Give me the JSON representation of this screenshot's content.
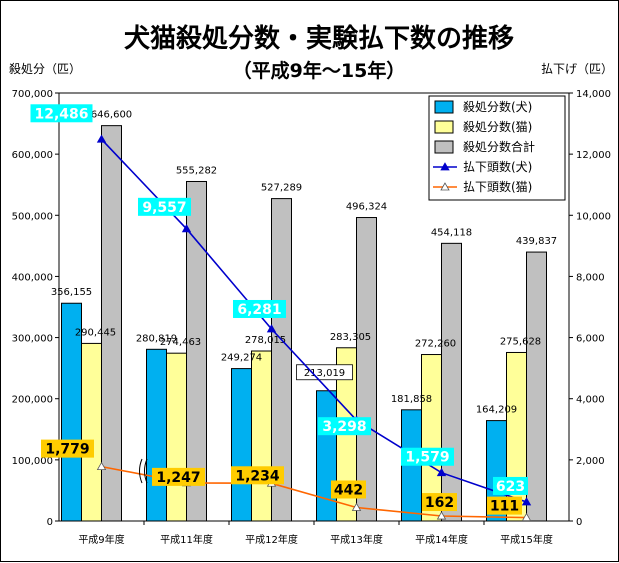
{
  "chart_data": {
    "type": "bar",
    "title": "犬猫殺処分数・実験払下数の推移",
    "subtitle": "（平成9年～15年）",
    "ylabel_left": "殺処分（匹）",
    "ylabel_right": "払下げ（匹）",
    "categories": [
      "平成9年度",
      "平成11年度",
      "平成12年度",
      "平成13年度",
      "平成14年度",
      "平成15年度"
    ],
    "ylim_left": [
      0,
      700000
    ],
    "ylim_right": [
      0,
      14000
    ],
    "left_ticks": [
      "0",
      "100,000",
      "200,000",
      "300,000",
      "400,000",
      "500,000",
      "600,000",
      "700,000"
    ],
    "right_ticks": [
      "0",
      "2,000",
      "4,000",
      "6,000",
      "8,000",
      "10,000",
      "12,000",
      "14,000"
    ],
    "series": [
      {
        "name": "殺処分数(犬)",
        "kind": "bar",
        "axis": "left",
        "color": "#00B0F0",
        "values": [
          356155,
          280819,
          249274,
          213019,
          181858,
          164209
        ],
        "labels": [
          "356,155",
          "280,819",
          "249,274",
          "213,019",
          "181,858",
          "164,209"
        ]
      },
      {
        "name": "殺処分数(猫)",
        "kind": "bar",
        "axis": "left",
        "color": "#FFFF99",
        "values": [
          290445,
          274463,
          278015,
          283305,
          272260,
          275628
        ],
        "labels": [
          "290,445",
          "274,463",
          "278,015",
          "283,305",
          "272,260",
          "275,628"
        ]
      },
      {
        "name": "殺処分数合計",
        "kind": "bar",
        "axis": "left",
        "color": "#C0C0C0",
        "values": [
          646600,
          555282,
          527289,
          496324,
          454118,
          439837
        ],
        "labels": [
          "646,600",
          "555,282",
          "527,289",
          "496,324",
          "454,118",
          "439,837"
        ]
      },
      {
        "name": "払下頭数(犬)",
        "kind": "line",
        "axis": "right",
        "color": "#0000CC",
        "values": [
          12486,
          9557,
          6281,
          3298,
          1579,
          623
        ],
        "labels": [
          "12,486",
          "9,557",
          "6,281",
          "3,298",
          "1,579",
          "623"
        ],
        "label_bg": "#00FFFF"
      },
      {
        "name": "払下頭数(猫)",
        "kind": "line",
        "axis": "right",
        "color": "#FF6600",
        "values": [
          1779,
          1247,
          1234,
          442,
          162,
          111
        ],
        "labels": [
          "1,779",
          "1,247",
          "1,234",
          "442",
          "162",
          "111"
        ],
        "label_bg": "#FFCC00"
      }
    ],
    "legend_position": "top-right",
    "grid": false
  }
}
